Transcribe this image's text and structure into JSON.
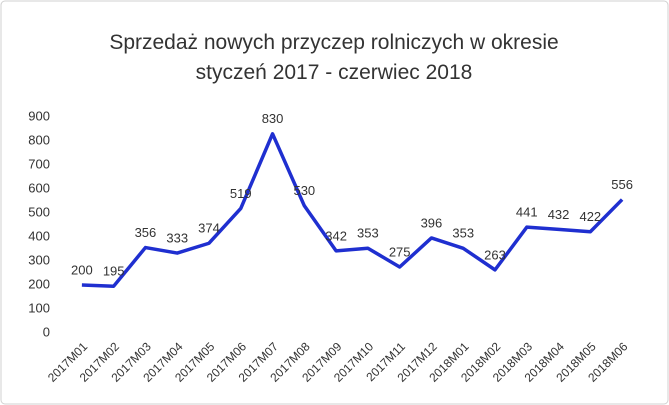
{
  "chart_data": {
    "type": "line",
    "title": "Sprzedaż nowych przyczep rolniczych w okresie styczeń 2017 - czerwiec 2018",
    "categories": [
      "2017M01",
      "2017M02",
      "2017M03",
      "2017M04",
      "2017M05",
      "2017M06",
      "2017M07",
      "2017M08",
      "2017M09",
      "2017M10",
      "2017M11",
      "2017M12",
      "2018M01",
      "2018M02",
      "2018M03",
      "2018M04",
      "2018M05",
      "2018M06"
    ],
    "values": [
      200,
      195,
      356,
      333,
      374,
      519,
      830,
      530,
      342,
      353,
      275,
      396,
      353,
      263,
      441,
      432,
      422,
      556
    ],
    "color": "#1f2fd0",
    "ylim": [
      0,
      900
    ],
    "yticks": [
      0,
      100,
      200,
      300,
      400,
      500,
      600,
      700,
      800,
      900
    ],
    "grid": false
  }
}
